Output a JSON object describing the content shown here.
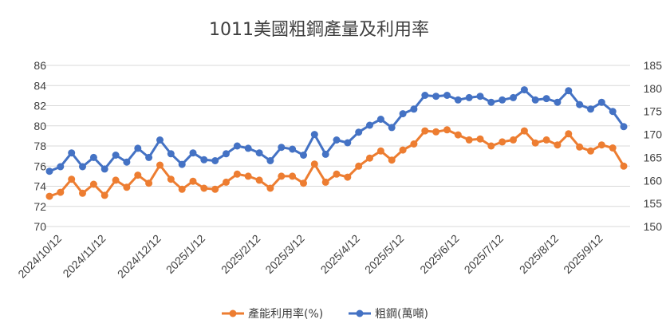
{
  "chart_data": {
    "type": "line",
    "title": "1011美國粗鋼產量及利用率",
    "x_ticks": [
      "2024/10/12",
      "2024/11/12",
      "2024/12/12",
      "2025/1/12",
      "2025/2/12",
      "2025/3/12",
      "2025/4/12",
      "2025/5/12",
      "2025/6/12",
      "2025/7/12",
      "2025/8/12",
      "2025/9/12"
    ],
    "y_left": {
      "min": 70,
      "max": 86,
      "step": 2,
      "ticks": [
        "70",
        "72",
        "74",
        "76",
        "78",
        "80",
        "82",
        "84",
        "86"
      ]
    },
    "y_right": {
      "min": 150,
      "max": 185,
      "step": 5,
      "ticks": [
        "150",
        "155",
        "160",
        "165",
        "170",
        "175",
        "180",
        "185"
      ]
    },
    "grid": true,
    "legend_position": "bottom",
    "series": [
      {
        "name": "產能利用率(%)",
        "axis": "left",
        "color": "#ED7D31",
        "values": [
          73.0,
          73.4,
          74.7,
          73.3,
          74.2,
          73.1,
          74.6,
          73.9,
          75.1,
          74.3,
          76.1,
          74.7,
          73.7,
          74.5,
          73.8,
          73.7,
          74.4,
          75.2,
          75.0,
          74.6,
          73.8,
          75.0,
          75.0,
          74.3,
          76.2,
          74.4,
          75.2,
          74.9,
          76.0,
          76.8,
          77.5,
          76.6,
          77.6,
          78.2,
          79.5,
          79.4,
          79.6,
          79.1,
          78.6,
          78.7,
          78.0,
          78.4,
          78.6,
          79.5,
          78.3,
          78.6,
          78.1,
          79.2,
          77.9,
          77.5,
          78.1,
          77.8,
          76.0
        ]
      },
      {
        "name": "粗鋼(萬噸)",
        "axis": "right",
        "color": "#4472C4",
        "values": [
          162.0,
          163.0,
          166.0,
          163.0,
          165.0,
          162.5,
          165.5,
          164.0,
          167.0,
          165.0,
          168.8,
          165.8,
          163.5,
          166.0,
          164.5,
          164.3,
          165.8,
          167.5,
          167.0,
          166.0,
          164.3,
          167.2,
          166.8,
          165.5,
          170.0,
          165.7,
          168.8,
          168.2,
          170.5,
          172.0,
          173.3,
          171.5,
          174.5,
          175.5,
          178.5,
          178.3,
          178.5,
          177.5,
          178.0,
          178.3,
          177.0,
          177.5,
          178.0,
          179.7,
          177.5,
          177.8,
          177.0,
          179.5,
          176.5,
          175.5,
          177.0,
          175.0,
          171.7
        ]
      }
    ]
  }
}
